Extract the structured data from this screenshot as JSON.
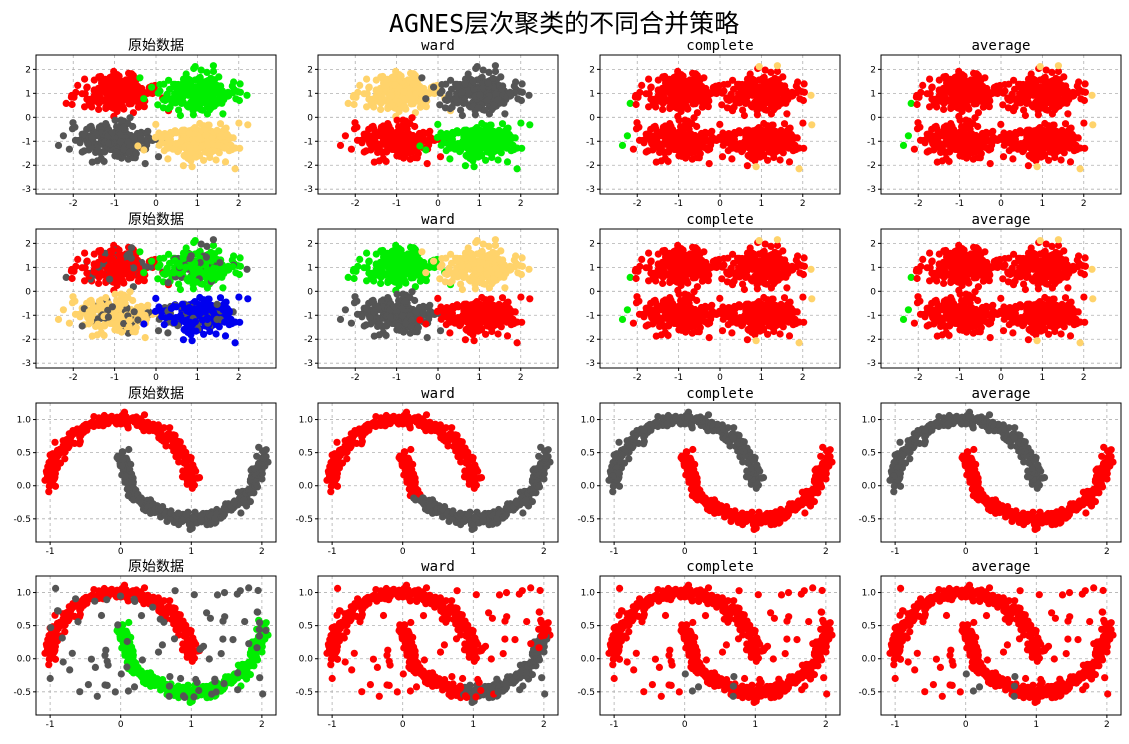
{
  "figure": {
    "title": "AGNES层次聚类的不同合并策略"
  },
  "colors": {
    "red": "#ff0000",
    "gray": "#555555",
    "green": "#00ee00",
    "yellow": "#ffd36b",
    "blue": "#0000ee"
  },
  "chart_data": [
    {
      "type": "scatter",
      "title": "原始数据",
      "dataset": "blobs",
      "xlim": [
        -2.9,
        2.9
      ],
      "ylim": [
        -3.2,
        2.6
      ],
      "xticks": [
        -2,
        -1,
        0,
        1,
        2
      ],
      "yticks": [
        -3,
        -2,
        -1,
        0,
        1,
        2
      ],
      "labeling": "blobs4",
      "palette": [
        "red",
        "green",
        "gray",
        "yellow"
      ],
      "series": [
        {
          "name": "",
          "color": "red",
          "center": [
            -1,
            1
          ]
        },
        {
          "name": "",
          "color": "green",
          "center": [
            1,
            1
          ]
        },
        {
          "name": "",
          "color": "gray",
          "center": [
            -1,
            -1
          ]
        },
        {
          "name": "",
          "color": "yellow",
          "center": [
            1,
            -1
          ]
        }
      ]
    },
    {
      "type": "scatter",
      "title": "ward",
      "dataset": "blobs",
      "xlim": [
        -2.9,
        2.9
      ],
      "ylim": [
        -3.2,
        2.6
      ],
      "xticks": [
        -2,
        -1,
        0,
        1,
        2
      ],
      "yticks": [
        -3,
        -2,
        -1,
        0,
        1,
        2
      ],
      "labeling": "blobs4",
      "palette": [
        "yellow",
        "gray",
        "red",
        "green"
      ]
    },
    {
      "type": "scatter",
      "title": "complete",
      "dataset": "blobs",
      "xlim": [
        -2.9,
        2.9
      ],
      "ylim": [
        -3.2,
        2.6
      ],
      "xticks": [
        -2,
        -1,
        0,
        1,
        2
      ],
      "yticks": [
        -3,
        -2,
        -1,
        0,
        1,
        2
      ],
      "labeling": "outliers",
      "palette": [
        "red",
        "green",
        "yellow",
        "gray"
      ]
    },
    {
      "type": "scatter",
      "title": "average",
      "dataset": "blobs",
      "xlim": [
        -2.9,
        2.9
      ],
      "ylim": [
        -3.2,
        2.6
      ],
      "xticks": [
        -2,
        -1,
        0,
        1,
        2
      ],
      "yticks": [
        -3,
        -2,
        -1,
        0,
        1,
        2
      ],
      "labeling": "outliers",
      "palette": [
        "red",
        "green",
        "yellow",
        "gray"
      ]
    },
    {
      "type": "scatter",
      "title": "原始数据",
      "dataset": "blobs",
      "xlim": [
        -2.9,
        2.9
      ],
      "ylim": [
        -3.2,
        2.6
      ],
      "xticks": [
        -2,
        -1,
        0,
        1,
        2
      ],
      "yticks": [
        -3,
        -2,
        -1,
        0,
        1,
        2
      ],
      "labeling": "mixed5",
      "palette": [
        "red",
        "green",
        "yellow",
        "blue",
        "gray"
      ]
    },
    {
      "type": "scatter",
      "title": "ward",
      "dataset": "blobs",
      "xlim": [
        -2.9,
        2.9
      ],
      "ylim": [
        -3.2,
        2.6
      ],
      "xticks": [
        -2,
        -1,
        0,
        1,
        2
      ],
      "yticks": [
        -3,
        -2,
        -1,
        0,
        1,
        2
      ],
      "labeling": "blobs4",
      "palette": [
        "green",
        "yellow",
        "gray",
        "red"
      ]
    },
    {
      "type": "scatter",
      "title": "complete",
      "dataset": "blobs",
      "xlim": [
        -2.9,
        2.9
      ],
      "ylim": [
        -3.2,
        2.6
      ],
      "xticks": [
        -2,
        -1,
        0,
        1,
        2
      ],
      "yticks": [
        -3,
        -2,
        -1,
        0,
        1,
        2
      ],
      "labeling": "outliers",
      "palette": [
        "red",
        "green",
        "yellow",
        "gray"
      ]
    },
    {
      "type": "scatter",
      "title": "average",
      "dataset": "blobs",
      "xlim": [
        -2.9,
        2.9
      ],
      "ylim": [
        -3.2,
        2.6
      ],
      "xticks": [
        -2,
        -1,
        0,
        1,
        2
      ],
      "yticks": [
        -3,
        -2,
        -1,
        0,
        1,
        2
      ],
      "labeling": "outliers",
      "palette": [
        "red",
        "green",
        "yellow",
        "gray"
      ]
    },
    {
      "type": "scatter",
      "title": "原始数据",
      "dataset": "moons",
      "xlim": [
        -1.2,
        2.2
      ],
      "ylim": [
        -0.85,
        1.25
      ],
      "xticks": [
        -1,
        0,
        1,
        2
      ],
      "yticks": [
        -0.5,
        0.0,
        0.5,
        1.0
      ],
      "labeling": "moons",
      "palette": [
        "red",
        "gray"
      ]
    },
    {
      "type": "scatter",
      "title": "ward",
      "dataset": "moons",
      "xlim": [
        -1.2,
        2.2
      ],
      "ylim": [
        -0.85,
        1.25
      ],
      "xticks": [
        -1,
        0,
        1,
        2
      ],
      "yticks": [
        -0.5,
        0.0,
        0.5,
        1.0
      ],
      "labeling": "moonsward",
      "palette": [
        "red",
        "gray"
      ]
    },
    {
      "type": "scatter",
      "title": "complete",
      "dataset": "moons",
      "xlim": [
        -1.2,
        2.2
      ],
      "ylim": [
        -0.85,
        1.25
      ],
      "xticks": [
        -1,
        0,
        1,
        2
      ],
      "yticks": [
        -0.5,
        0.0,
        0.5,
        1.0
      ],
      "labeling": "moons",
      "palette": [
        "gray",
        "red"
      ]
    },
    {
      "type": "scatter",
      "title": "average",
      "dataset": "moons",
      "xlim": [
        -1.2,
        2.2
      ],
      "ylim": [
        -0.85,
        1.25
      ],
      "xticks": [
        -1,
        0,
        1,
        2
      ],
      "yticks": [
        -0.5,
        0.0,
        0.5,
        1.0
      ],
      "labeling": "moons",
      "palette": [
        "gray",
        "red"
      ]
    },
    {
      "type": "scatter",
      "title": "原始数据",
      "dataset": "moonsnoise",
      "xlim": [
        -1.2,
        2.2
      ],
      "ylim": [
        -0.85,
        1.25
      ],
      "xticks": [
        -1,
        0,
        1,
        2
      ],
      "yticks": [
        -0.5,
        0.0,
        0.5,
        1.0
      ],
      "labeling": "moonsnoise",
      "palette": [
        "red",
        "green",
        "gray"
      ]
    },
    {
      "type": "scatter",
      "title": "ward",
      "dataset": "moonsnoise",
      "xlim": [
        -1.2,
        2.2
      ],
      "ylim": [
        -0.85,
        1.25
      ],
      "xticks": [
        -1,
        0,
        1,
        2
      ],
      "yticks": [
        -0.5,
        0.0,
        0.5,
        1.0
      ],
      "labeling": "wardnoise",
      "palette": [
        "red",
        "gray"
      ]
    },
    {
      "type": "scatter",
      "title": "complete",
      "dataset": "moonsnoise",
      "xlim": [
        -1.2,
        2.2
      ],
      "ylim": [
        -0.85,
        1.25
      ],
      "xticks": [
        -1,
        0,
        1,
        2
      ],
      "yticks": [
        -0.5,
        0.0,
        0.5,
        1.0
      ],
      "labeling": "noisefew",
      "palette": [
        "red",
        "gray"
      ]
    },
    {
      "type": "scatter",
      "title": "average",
      "dataset": "moonsnoise",
      "xlim": [
        -1.2,
        2.2
      ],
      "ylim": [
        -0.85,
        1.25
      ],
      "xticks": [
        -1,
        0,
        1,
        2
      ],
      "yticks": [
        -0.5,
        0.0,
        0.5,
        1.0
      ],
      "labeling": "noisefew",
      "palette": [
        "red",
        "gray"
      ]
    }
  ]
}
